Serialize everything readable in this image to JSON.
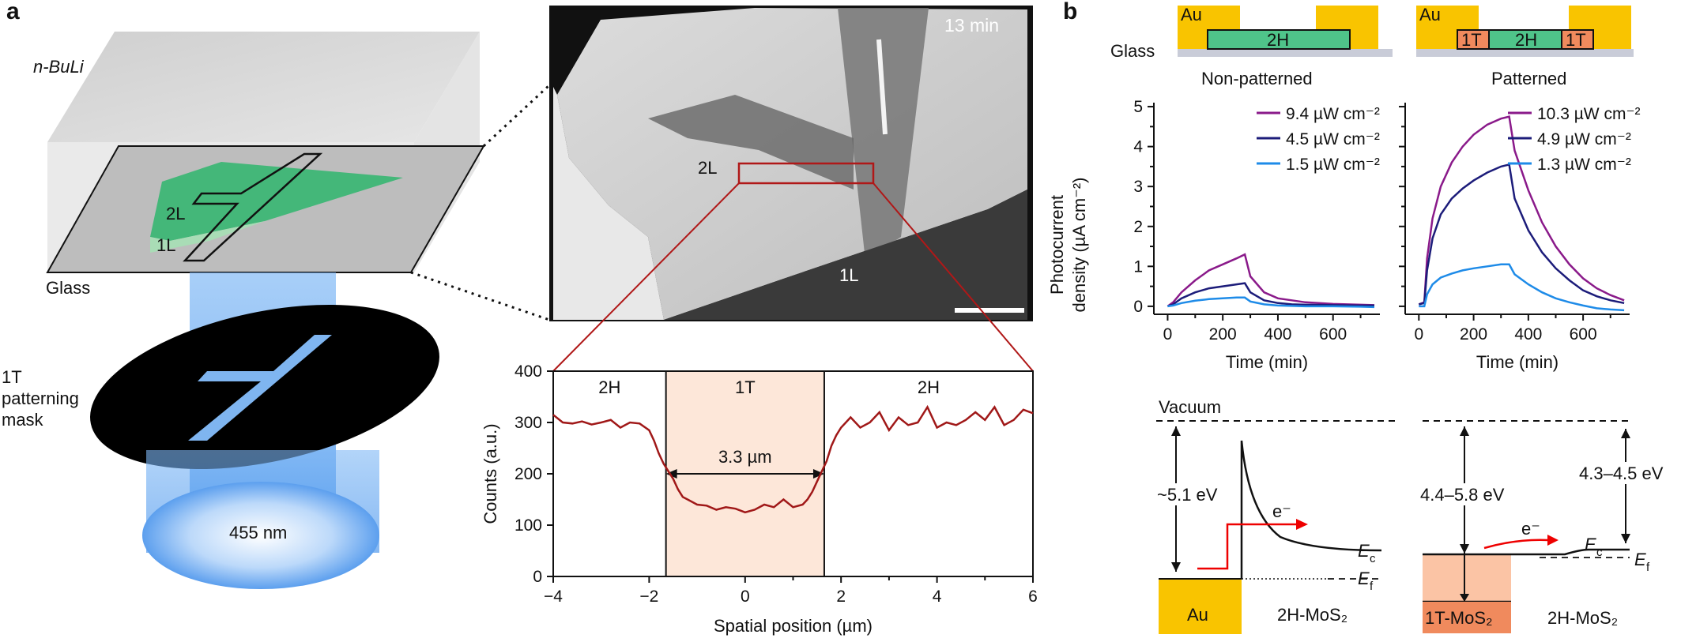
{
  "panel_a": {
    "letter": "a",
    "schematic": {
      "reagent": "n-BuLi",
      "substrate": "Glass",
      "bilayer": "2L",
      "monolayer": "1L",
      "mask_label_line1": "1T",
      "mask_label_line2": "patterning",
      "mask_label_line3": "mask",
      "wavelength": "455 nm"
    },
    "micrograph": {
      "time": "13 min",
      "bilayer": "2L",
      "monolayer": "1L"
    }
  },
  "panel_b": {
    "letter": "b",
    "devices": {
      "substrate": "Glass",
      "electrode": "Au",
      "left_channel": "2H",
      "right_left_contact": "1T",
      "right_channel": "2H",
      "right_right_contact": "1T",
      "left_title": "Non-patterned",
      "right_title": "Patterned"
    },
    "bands": {
      "vacuum": "Vacuum",
      "left_barrier": "~5.1 eV",
      "right_barrier_1": "4.4–5.8 eV",
      "right_barrier_2": "4.3–4.5 eV",
      "electron": "e⁻",
      "ec": "E",
      "ec_sub": "c",
      "ef": "E",
      "ef_sub": "f",
      "left_metal": "Au",
      "left_semi": "2H-MoS₂",
      "right_metal": "1T-MoS₂",
      "right_semi": "2H-MoS₂"
    }
  },
  "colors": {
    "gold": "#f9c400",
    "green": "#4fc48a",
    "orange": "#f08a5d",
    "peach": "#fde7d9",
    "curve_red": "#a01818",
    "purple": "#8a1a8a",
    "navy": "#1c1c7a",
    "blue": "#1e8be8"
  },
  "chart_data": [
    {
      "type": "line",
      "name": "line-profile",
      "xlabel": "Spatial position (µm)",
      "ylabel": "Counts (a.u.)",
      "xlim": [
        -4,
        6
      ],
      "ylim": [
        0,
        400
      ],
      "xticks": [
        "−4",
        "−2",
        "0",
        "2",
        "4",
        "6"
      ],
      "yticks": [
        "0",
        "100",
        "200",
        "300",
        "400"
      ],
      "regions": [
        {
          "label": "2H",
          "from": -4,
          "to": -1.65
        },
        {
          "label": "1T",
          "from": -1.65,
          "to": 1.65
        },
        {
          "label": "2H",
          "from": 1.65,
          "to": 6
        }
      ],
      "annotation": "3.3 µm",
      "series": [
        {
          "name": "counts",
          "x": [
            -4,
            -3.8,
            -3.6,
            -3.4,
            -3.2,
            -3,
            -2.8,
            -2.6,
            -2.4,
            -2.2,
            -2,
            -1.9,
            -1.8,
            -1.7,
            -1.6,
            -1.5,
            -1.4,
            -1.3,
            -1.2,
            -1,
            -0.8,
            -0.6,
            -0.4,
            -0.2,
            0,
            0.2,
            0.4,
            0.6,
            0.8,
            1,
            1.2,
            1.3,
            1.4,
            1.5,
            1.6,
            1.7,
            1.8,
            1.9,
            2,
            2.2,
            2.4,
            2.6,
            2.8,
            3,
            3.2,
            3.4,
            3.6,
            3.8,
            4,
            4.2,
            4.4,
            4.6,
            4.8,
            5,
            5.2,
            5.4,
            5.6,
            5.8,
            6
          ],
          "y": [
            315,
            300,
            298,
            302,
            296,
            300,
            305,
            290,
            300,
            298,
            285,
            265,
            240,
            220,
            205,
            190,
            170,
            155,
            150,
            140,
            138,
            130,
            135,
            132,
            125,
            130,
            140,
            135,
            150,
            135,
            140,
            150,
            165,
            185,
            205,
            225,
            255,
            275,
            290,
            310,
            290,
            300,
            320,
            285,
            310,
            295,
            300,
            330,
            290,
            300,
            295,
            305,
            320,
            305,
            330,
            295,
            305,
            325,
            318
          ]
        }
      ]
    },
    {
      "type": "line",
      "name": "photocurrent-non-patterned",
      "title": "Non-patterned",
      "xlabel": "Time (min)",
      "ylabel": "Photocurrent density (µA cm⁻²)",
      "ylabel_line1": "Photocurrent",
      "ylabel_line2": "density (µA cm⁻²)",
      "xlim": [
        -50,
        770
      ],
      "ylim": [
        -0.2,
        5.1
      ],
      "xticks": [
        "0",
        "200",
        "400",
        "600"
      ],
      "yticks": [
        "0",
        "1",
        "2",
        "3",
        "4",
        "5"
      ],
      "series": [
        {
          "name": "9.4 µW cm⁻²",
          "color": "purple",
          "x": [
            0,
            20,
            50,
            100,
            150,
            200,
            250,
            280,
            300,
            350,
            400,
            450,
            500,
            600,
            700,
            750
          ],
          "y": [
            0,
            0.1,
            0.35,
            0.65,
            0.9,
            1.05,
            1.2,
            1.3,
            0.75,
            0.35,
            0.2,
            0.15,
            0.1,
            0.06,
            0.04,
            0.03
          ]
        },
        {
          "name": "4.5 µW cm⁻²",
          "color": "navy",
          "x": [
            0,
            20,
            50,
            100,
            150,
            200,
            250,
            280,
            300,
            350,
            400,
            450,
            500,
            600,
            700,
            750
          ],
          "y": [
            0,
            0.05,
            0.2,
            0.35,
            0.45,
            0.5,
            0.55,
            0.58,
            0.35,
            0.15,
            0.08,
            0.05,
            0.04,
            0.03,
            0.02,
            0.02
          ]
        },
        {
          "name": "1.5 µW cm⁻²",
          "color": "blue",
          "x": [
            0,
            20,
            50,
            100,
            150,
            200,
            250,
            280,
            300,
            350,
            400,
            450,
            500,
            600,
            700,
            750
          ],
          "y": [
            0,
            0.02,
            0.08,
            0.14,
            0.18,
            0.2,
            0.22,
            0.22,
            0.12,
            0.05,
            0.02,
            0.01,
            0,
            0,
            -0.01,
            -0.02
          ]
        }
      ]
    },
    {
      "type": "line",
      "name": "photocurrent-patterned",
      "title": "Patterned",
      "xlabel": "Time (min)",
      "ylabel": "",
      "xlim": [
        -50,
        770
      ],
      "ylim": [
        -0.2,
        5.1
      ],
      "xticks": [
        "0",
        "200",
        "400",
        "600"
      ],
      "yticks": [],
      "series": [
        {
          "name": "10.3 µW cm⁻²",
          "color": "purple",
          "x": [
            0,
            20,
            30,
            50,
            80,
            120,
            160,
            200,
            250,
            300,
            330,
            350,
            400,
            450,
            500,
            550,
            600,
            650,
            700,
            750
          ],
          "y": [
            0.05,
            0.1,
            1.2,
            2.2,
            3.0,
            3.6,
            4.0,
            4.3,
            4.55,
            4.7,
            4.75,
            3.9,
            2.9,
            2.1,
            1.5,
            1.05,
            0.7,
            0.45,
            0.28,
            0.15
          ]
        },
        {
          "name": "4.9 µW cm⁻²",
          "color": "navy",
          "x": [
            0,
            20,
            30,
            50,
            80,
            120,
            160,
            200,
            250,
            300,
            330,
            350,
            400,
            450,
            500,
            550,
            600,
            650,
            700,
            750
          ],
          "y": [
            0.05,
            0.08,
            0.9,
            1.7,
            2.3,
            2.7,
            2.95,
            3.15,
            3.35,
            3.5,
            3.55,
            2.7,
            1.9,
            1.35,
            0.95,
            0.65,
            0.4,
            0.25,
            0.15,
            0.08
          ]
        },
        {
          "name": "1.3 µW cm⁻²",
          "color": "blue",
          "x": [
            0,
            20,
            30,
            50,
            80,
            120,
            160,
            200,
            250,
            300,
            330,
            350,
            400,
            450,
            500,
            550,
            600,
            650,
            700,
            750
          ],
          "y": [
            0.0,
            0.0,
            0.3,
            0.55,
            0.72,
            0.82,
            0.9,
            0.95,
            1.0,
            1.05,
            1.05,
            0.8,
            0.55,
            0.35,
            0.2,
            0.1,
            0.02,
            -0.05,
            -0.08,
            -0.1
          ]
        }
      ]
    }
  ]
}
